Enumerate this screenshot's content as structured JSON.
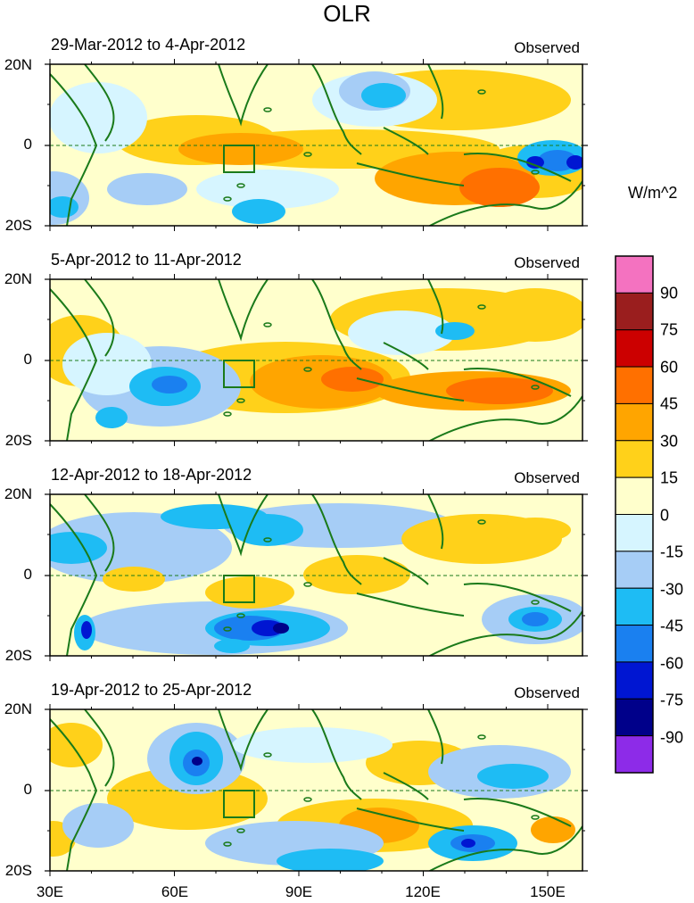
{
  "title": "OLR",
  "units": "W/m^2",
  "panels": [
    {
      "date": "29-Mar-2012 to 4-Apr-2012",
      "label": "Observed"
    },
    {
      "date": "5-Apr-2012 to 11-Apr-2012",
      "label": "Observed"
    },
    {
      "date": "12-Apr-2012 to 18-Apr-2012",
      "label": "Observed"
    },
    {
      "date": "19-Apr-2012 to 25-Apr-2012",
      "label": "Observed"
    }
  ],
  "lat_labels": [
    "20N",
    "0",
    "20S"
  ],
  "lon_labels": [
    "30E",
    "60E",
    "90E",
    "120E",
    "150E"
  ],
  "colorbar": {
    "labels": [
      "90",
      "75",
      "60",
      "45",
      "30",
      "15",
      "0",
      "-15",
      "-30",
      "-45",
      "-60",
      "-75",
      "-90"
    ],
    "colors": [
      "#f472c0",
      "#9a1e1e",
      "#cc0000",
      "#ff7000",
      "#ffa500",
      "#ffd11a",
      "#ffffcc",
      "#d6f5ff",
      "#a6cdf6",
      "#1ebcf4",
      "#1a80f0",
      "#0016d2",
      "#00008a",
      "#8d2be8"
    ]
  },
  "palette": {
    "land": "#1a7a1a",
    "plus15": "#ffd11a",
    "plus30": "#ffa500",
    "plus45": "#ff7000",
    "minus15a": "#d6f5ff",
    "minus15b": "#a6cdf6",
    "minus30": "#1ebcf4",
    "minus45": "#1a80f0",
    "minus60": "#0016d2",
    "minus75": "#00008a",
    "minus90": "#8d2be8"
  }
}
